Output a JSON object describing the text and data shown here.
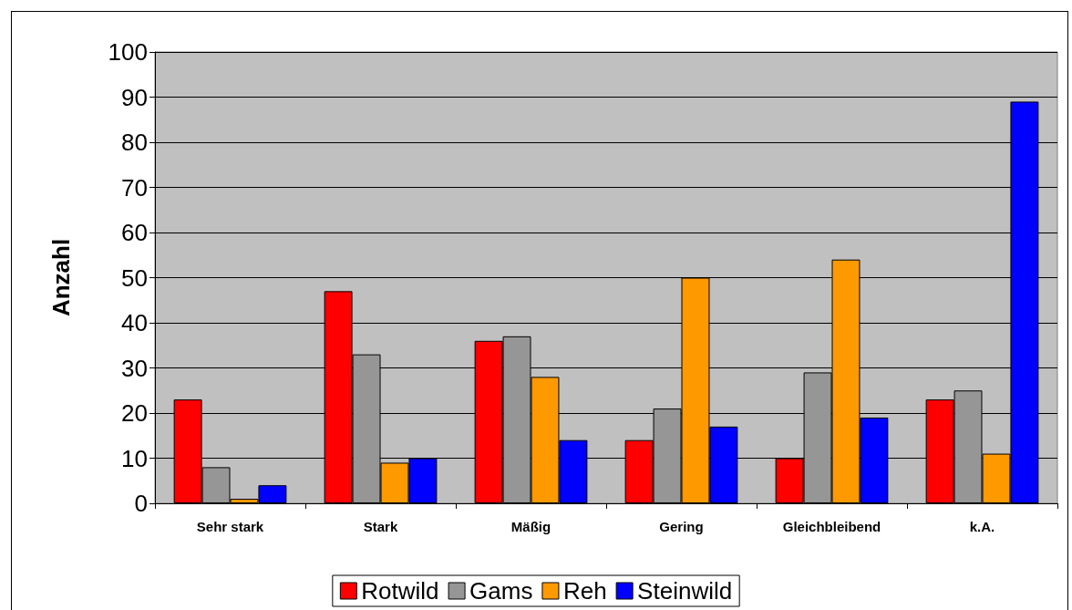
{
  "chart_data": {
    "type": "bar",
    "ylabel": "Anzahl",
    "categories": [
      "Sehr stark",
      "Stark",
      "Mäßig",
      "Gering",
      "Gleichbleibend",
      "k.A."
    ],
    "series": [
      {
        "name": "Rotwild",
        "color": "#ff0000",
        "values": [
          23,
          47,
          36,
          14,
          10,
          23
        ]
      },
      {
        "name": "Gams",
        "color": "#969696",
        "values": [
          8,
          33,
          37,
          21,
          29,
          25
        ]
      },
      {
        "name": "Reh",
        "color": "#ff9900",
        "values": [
          1,
          9,
          28,
          50,
          54,
          11
        ]
      },
      {
        "name": "Steinwild",
        "color": "#0000ff",
        "values": [
          4,
          10,
          14,
          17,
          19,
          89
        ]
      }
    ],
    "ylim": [
      0,
      100
    ],
    "yticks": [
      0,
      10,
      20,
      30,
      40,
      50,
      60,
      70,
      80,
      90,
      100
    ],
    "grid": "y",
    "legend": "bottom"
  }
}
